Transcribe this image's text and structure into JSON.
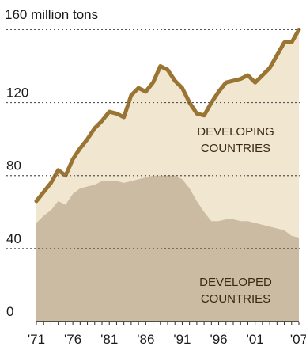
{
  "chart_data": {
    "type": "area",
    "y_unit_label": "160 million tons",
    "ylim": [
      0,
      168
    ],
    "yticks": [
      {
        "value": 0,
        "label": "0"
      },
      {
        "value": 40,
        "label": "40"
      },
      {
        "value": 80,
        "label": "80"
      },
      {
        "value": 120,
        "label": "120"
      }
    ],
    "xlim": [
      1971,
      2007
    ],
    "xticks": [
      {
        "value": 1971,
        "label": "'71"
      },
      {
        "value": 1976,
        "label": "'76"
      },
      {
        "value": 1981,
        "label": "'81"
      },
      {
        "value": 1986,
        "label": "'86"
      },
      {
        "value": 1991,
        "label": "'91"
      },
      {
        "value": 1996,
        "label": "'96"
      },
      {
        "value": 2001,
        "label": "'01"
      },
      {
        "value": 2007,
        "label": "'07"
      }
    ],
    "grid": "dotted horizontal",
    "series": [
      {
        "name": "DEVELOPED COUNTRIES",
        "kind": "area",
        "color": "#cbbba3",
        "x": [
          1971,
          1972,
          1973,
          1974,
          1975,
          1976,
          1977,
          1978,
          1979,
          1980,
          1981,
          1982,
          1983,
          1984,
          1985,
          1986,
          1987,
          1988,
          1989,
          1990,
          1991,
          1992,
          1993,
          1994,
          1995,
          1996,
          1997,
          1998,
          1999,
          2000,
          2001,
          2002,
          2003,
          2004,
          2005,
          2006,
          2007
        ],
        "values": [
          54,
          58,
          61,
          66,
          64,
          70,
          73,
          74,
          75,
          77,
          77,
          77,
          76,
          77,
          78,
          79,
          80,
          80,
          80,
          80,
          78,
          73,
          66,
          60,
          55,
          55,
          56,
          56,
          55,
          55,
          54,
          53,
          52,
          51,
          50,
          47,
          46
        ]
      },
      {
        "name": "DEVELOPING COUNTRIES",
        "kind": "line-area",
        "color": "#9a7432",
        "fill": "#f1e6d0",
        "x": [
          1971,
          1972,
          1973,
          1974,
          1975,
          1976,
          1977,
          1978,
          1979,
          1980,
          1981,
          1982,
          1983,
          1984,
          1985,
          1986,
          1987,
          1988,
          1989,
          1990,
          1991,
          1992,
          1993,
          1994,
          1995,
          1996,
          1997,
          1998,
          1999,
          2000,
          2001,
          2002,
          2003,
          2004,
          2005,
          2006,
          2007
        ],
        "values": [
          66,
          71,
          76,
          83,
          80,
          89,
          95,
          100,
          106,
          110,
          115,
          114,
          112,
          124,
          128,
          126,
          131,
          140,
          138,
          132,
          128,
          120,
          114,
          113,
          120,
          126,
          131,
          132,
          133,
          135,
          131,
          135,
          139,
          146,
          153,
          153,
          160
        ]
      }
    ],
    "annotations": [
      {
        "lines": [
          "DEVELOPING",
          "COUNTRIES"
        ]
      },
      {
        "lines": [
          "DEVELOPED",
          "COUNTRIES"
        ]
      }
    ]
  }
}
